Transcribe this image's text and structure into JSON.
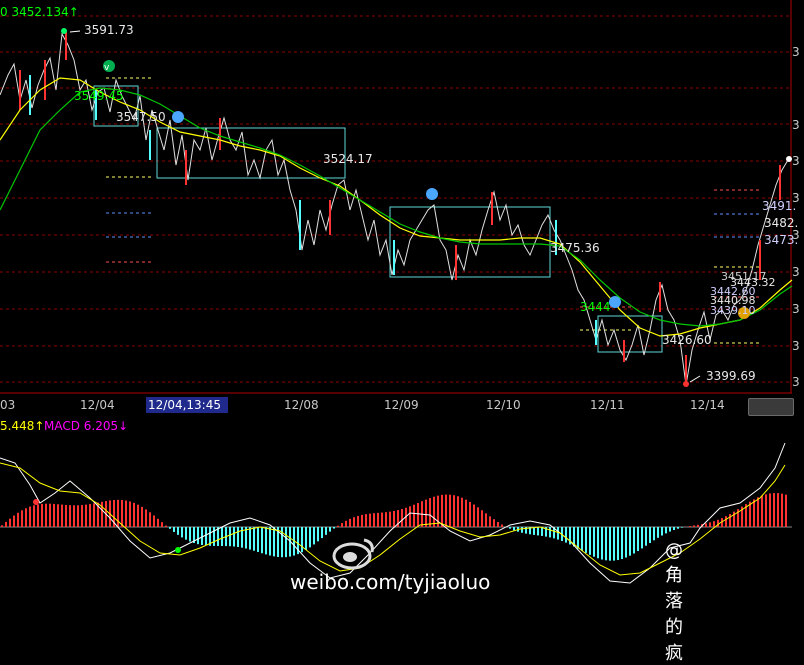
{
  "header": {
    "ma_label": "0 3452.134↑",
    "macd_dif_label": "5.448↑",
    "macd_label": "MACD 6.205↓"
  },
  "price_labels": {
    "high": "3591.73",
    "low": "3399.69",
    "l1": "3547.50",
    "l2": "3524.17",
    "l3": "3475.36",
    "l4": "3426.60",
    "l5": "3444",
    "l6": "3549.45",
    "r1": "3491.",
    "r2": "3482.",
    "r3": "3473.",
    "r4": "3451.17",
    "r5": "3443.32",
    "r6": "3442.60",
    "r7": "3440.98",
    "r8": "3439.10"
  },
  "x_axis": {
    "dates": [
      "03",
      "12/04",
      "12/08",
      "12/09",
      "12/10",
      "12/11",
      "12/14"
    ],
    "cursor_label": "12/04,13:45"
  },
  "right_ticks": [
    "3",
    "3",
    "3",
    "3",
    "3",
    "3",
    "3",
    "3",
    "3"
  ],
  "watermark": {
    "handle": "@角落的疯",
    "url": "weibo.com/tyjiaoluo"
  },
  "colors": {
    "up": "#ff3232",
    "down": "#54ffff",
    "ma_yellow": "#ffff00",
    "ma_green": "#00c800",
    "macd_magenta": "#ff00ff",
    "grid": "#7a0000"
  }
}
